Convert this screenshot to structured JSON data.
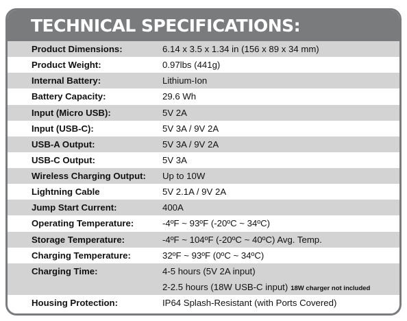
{
  "title": "TECHNICAL SPECIFICATIONS:",
  "specs": [
    {
      "label": "Product Dimensions:",
      "value": "6.14 x 3.5 x 1.34 in (156 x 89 x 34 mm)"
    },
    {
      "label": "Product Weight:",
      "value": "0.97lbs (441g)"
    },
    {
      "label": "Internal Battery:",
      "value": "Lithium-Ion"
    },
    {
      "label": "Battery Capacity:",
      "value": "29.6 Wh"
    },
    {
      "label": "Input (Micro USB):",
      "value": "5V 2A"
    },
    {
      "label": "Input (USB-C):",
      "value": "5V 3A / 9V 2A"
    },
    {
      "label": "USB-A Output:",
      "value": "5V 3A / 9V 2A"
    },
    {
      "label": "USB-C Output:",
      "value": "5V 3A"
    },
    {
      "label": "Wireless Charging Output:",
      "value": "Up to 10W"
    },
    {
      "label": "Lightning Cable",
      "value": "5V 2.1A / 9V 2A"
    },
    {
      "label": "Jump Start Current:",
      "value": "400A"
    },
    {
      "label": "Operating Temperature:",
      "value": "-4ºF ~ 93ºF (-20ºC ~ 34ºC)"
    },
    {
      "label": "Storage Temperature:",
      "value": "-4ºF ~ 104ºF (-20ºC ~ 40ºC) Avg. Temp."
    },
    {
      "label": "Charging Temperature:",
      "value": "32ºF ~ 93ºF (0ºC ~ 34ºC)"
    },
    {
      "label": "Charging Time:",
      "value": "4-5 hours (5V 2A input)",
      "value2": "2-2.5 hours (18W USB-C input)",
      "note": "18W charger not included"
    },
    {
      "label": "Housing Protection:",
      "value": "IP64 Splash-Resistant (with Ports Covered)"
    }
  ]
}
